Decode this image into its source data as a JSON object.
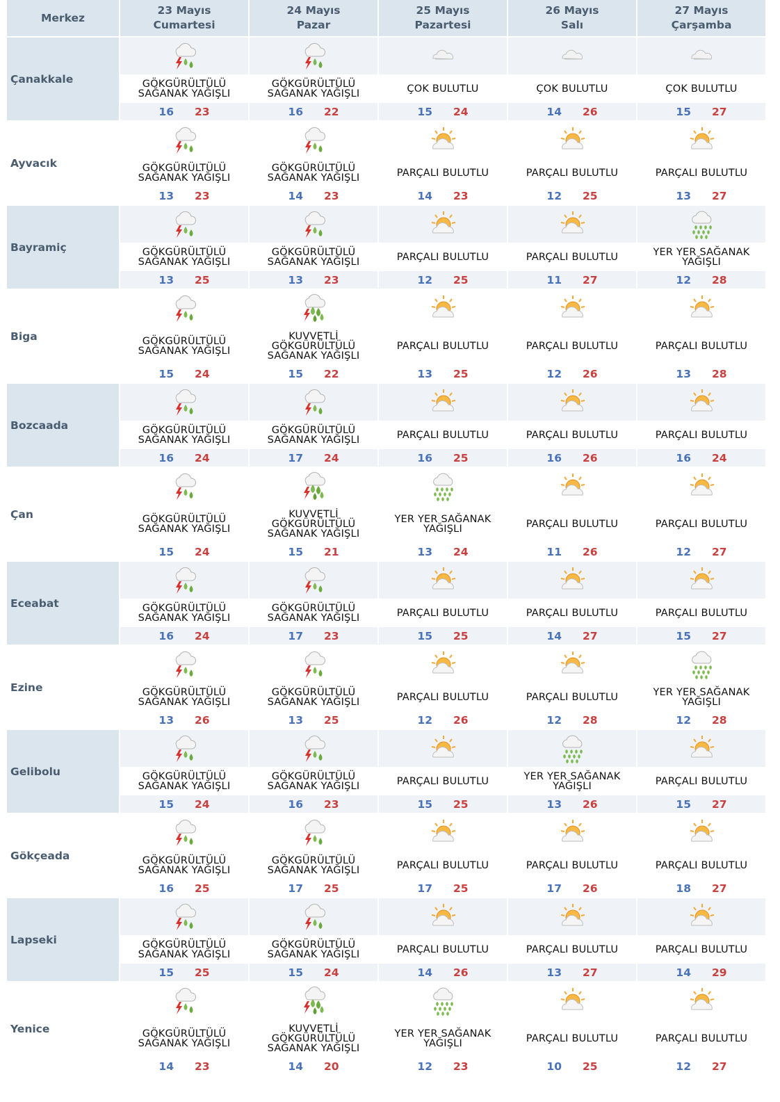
{
  "header": {
    "merkez_label": "Merkez",
    "days": [
      {
        "date": "23 Mayıs",
        "weekday": "Cumartesi"
      },
      {
        "date": "24 Mayıs",
        "weekday": "Pazar"
      },
      {
        "date": "25 Mayıs",
        "weekday": "Pazartesi"
      },
      {
        "date": "26 Mayıs",
        "weekday": "Salı"
      },
      {
        "date": "27 Mayıs",
        "weekday": "Çarşamba"
      }
    ]
  },
  "colors": {
    "header_bg": "#dbe5ee",
    "shaded_bg": "#eff3f7",
    "min_temp": "#4a72b8",
    "max_temp": "#c94040",
    "city_text": "#4a5d70"
  },
  "icons": {
    "storm": "thunderstorm-icon",
    "heavy_storm": "heavy-thunderstorm-icon",
    "cloudy": "cloudy-icon",
    "partly": "partly-cloudy-icon",
    "showers": "showers-icon"
  },
  "rows": [
    {
      "city": "Çanakkale",
      "days": [
        {
          "icon": "storm",
          "desc": "GÖKGÜRÜLTÜLÜ SAĞANAK YAĞIŞLI",
          "min": "16",
          "max": "23"
        },
        {
          "icon": "storm",
          "desc": "GÖKGÜRÜLTÜLÜ SAĞANAK YAĞIŞLI",
          "min": "16",
          "max": "22"
        },
        {
          "icon": "cloudy",
          "desc": "ÇOK BULUTLU",
          "min": "15",
          "max": "24"
        },
        {
          "icon": "cloudy",
          "desc": "ÇOK BULUTLU",
          "min": "14",
          "max": "26"
        },
        {
          "icon": "cloudy",
          "desc": "ÇOK BULUTLU",
          "min": "15",
          "max": "27"
        }
      ]
    },
    {
      "city": "Ayvacık",
      "days": [
        {
          "icon": "storm",
          "desc": "GÖKGÜRÜLTÜLÜ SAĞANAK YAĞIŞLI",
          "min": "13",
          "max": "23"
        },
        {
          "icon": "storm",
          "desc": "GÖKGÜRÜLTÜLÜ SAĞANAK YAĞIŞLI",
          "min": "14",
          "max": "23"
        },
        {
          "icon": "partly",
          "desc": "PARÇALI BULUTLU",
          "min": "14",
          "max": "23"
        },
        {
          "icon": "partly",
          "desc": "PARÇALI BULUTLU",
          "min": "12",
          "max": "25"
        },
        {
          "icon": "partly",
          "desc": "PARÇALI BULUTLU",
          "min": "13",
          "max": "27"
        }
      ]
    },
    {
      "city": "Bayramiç",
      "days": [
        {
          "icon": "storm",
          "desc": "GÖKGÜRÜLTÜLÜ SAĞANAK YAĞIŞLI",
          "min": "13",
          "max": "25"
        },
        {
          "icon": "storm",
          "desc": "GÖKGÜRÜLTÜLÜ SAĞANAK YAĞIŞLI",
          "min": "13",
          "max": "23"
        },
        {
          "icon": "partly",
          "desc": "PARÇALI BULUTLU",
          "min": "12",
          "max": "25"
        },
        {
          "icon": "partly",
          "desc": "PARÇALI BULUTLU",
          "min": "11",
          "max": "27"
        },
        {
          "icon": "showers",
          "desc": "YER YER SAĞANAK YAĞIŞLI",
          "min": "12",
          "max": "28"
        }
      ]
    },
    {
      "city": "Biga",
      "days": [
        {
          "icon": "storm",
          "desc": "GÖKGÜRÜLTÜLÜ SAĞANAK YAĞIŞLI",
          "min": "15",
          "max": "24"
        },
        {
          "icon": "heavy_storm",
          "desc": "KUVVETLİ GÖKGÜRÜLTÜLÜ SAĞANAK YAĞIŞLI",
          "min": "15",
          "max": "22"
        },
        {
          "icon": "partly",
          "desc": "PARÇALI BULUTLU",
          "min": "13",
          "max": "25"
        },
        {
          "icon": "partly",
          "desc": "PARÇALI BULUTLU",
          "min": "12",
          "max": "26"
        },
        {
          "icon": "partly",
          "desc": "PARÇALI BULUTLU",
          "min": "13",
          "max": "28"
        }
      ]
    },
    {
      "city": "Bozcaada",
      "days": [
        {
          "icon": "storm",
          "desc": "GÖKGÜRÜLTÜLÜ SAĞANAK YAĞIŞLI",
          "min": "16",
          "max": "24"
        },
        {
          "icon": "storm",
          "desc": "GÖKGÜRÜLTÜLÜ SAĞANAK YAĞIŞLI",
          "min": "17",
          "max": "24"
        },
        {
          "icon": "partly",
          "desc": "PARÇALI BULUTLU",
          "min": "16",
          "max": "25"
        },
        {
          "icon": "partly",
          "desc": "PARÇALI BULUTLU",
          "min": "16",
          "max": "26"
        },
        {
          "icon": "partly",
          "desc": "PARÇALI BULUTLU",
          "min": "16",
          "max": "24"
        }
      ]
    },
    {
      "city": "Çan",
      "days": [
        {
          "icon": "storm",
          "desc": "GÖKGÜRÜLTÜLÜ SAĞANAK YAĞIŞLI",
          "min": "15",
          "max": "24"
        },
        {
          "icon": "heavy_storm",
          "desc": "KUVVETLİ GÖKGÜRÜLTÜLÜ SAĞANAK YAĞIŞLI",
          "min": "15",
          "max": "21"
        },
        {
          "icon": "showers",
          "desc": "YER YER SAĞANAK YAĞIŞLI",
          "min": "13",
          "max": "24"
        },
        {
          "icon": "partly",
          "desc": "PARÇALI BULUTLU",
          "min": "11",
          "max": "26"
        },
        {
          "icon": "partly",
          "desc": "PARÇALI BULUTLU",
          "min": "12",
          "max": "27"
        }
      ]
    },
    {
      "city": "Eceabat",
      "days": [
        {
          "icon": "storm",
          "desc": "GÖKGÜRÜLTÜLÜ SAĞANAK YAĞIŞLI",
          "min": "16",
          "max": "24"
        },
        {
          "icon": "storm",
          "desc": "GÖKGÜRÜLTÜLÜ SAĞANAK YAĞIŞLI",
          "min": "17",
          "max": "23"
        },
        {
          "icon": "partly",
          "desc": "PARÇALI BULUTLU",
          "min": "15",
          "max": "25"
        },
        {
          "icon": "partly",
          "desc": "PARÇALI BULUTLU",
          "min": "14",
          "max": "27"
        },
        {
          "icon": "partly",
          "desc": "PARÇALI BULUTLU",
          "min": "15",
          "max": "27"
        }
      ]
    },
    {
      "city": "Ezine",
      "days": [
        {
          "icon": "storm",
          "desc": "GÖKGÜRÜLTÜLÜ SAĞANAK YAĞIŞLI",
          "min": "13",
          "max": "26"
        },
        {
          "icon": "storm",
          "desc": "GÖKGÜRÜLTÜLÜ SAĞANAK YAĞIŞLI",
          "min": "13",
          "max": "25"
        },
        {
          "icon": "partly",
          "desc": "PARÇALI BULUTLU",
          "min": "12",
          "max": "26"
        },
        {
          "icon": "partly",
          "desc": "PARÇALI BULUTLU",
          "min": "12",
          "max": "28"
        },
        {
          "icon": "showers",
          "desc": "YER YER SAĞANAK YAĞIŞLI",
          "min": "12",
          "max": "28"
        }
      ]
    },
    {
      "city": "Gelibolu",
      "days": [
        {
          "icon": "storm",
          "desc": "GÖKGÜRÜLTÜLÜ SAĞANAK YAĞIŞLI",
          "min": "15",
          "max": "24"
        },
        {
          "icon": "storm",
          "desc": "GÖKGÜRÜLTÜLÜ SAĞANAK YAĞIŞLI",
          "min": "16",
          "max": "23"
        },
        {
          "icon": "partly",
          "desc": "PARÇALI BULUTLU",
          "min": "15",
          "max": "25"
        },
        {
          "icon": "showers",
          "desc": "YER YER SAĞANAK YAĞIŞLI",
          "min": "13",
          "max": "26"
        },
        {
          "icon": "partly",
          "desc": "PARÇALI BULUTLU",
          "min": "15",
          "max": "27"
        }
      ]
    },
    {
      "city": "Gökçeada",
      "days": [
        {
          "icon": "storm",
          "desc": "GÖKGÜRÜLTÜLÜ SAĞANAK YAĞIŞLI",
          "min": "16",
          "max": "25"
        },
        {
          "icon": "storm",
          "desc": "GÖKGÜRÜLTÜLÜ SAĞANAK YAĞIŞLI",
          "min": "17",
          "max": "25"
        },
        {
          "icon": "partly",
          "desc": "PARÇALI BULUTLU",
          "min": "17",
          "max": "25"
        },
        {
          "icon": "partly",
          "desc": "PARÇALI BULUTLU",
          "min": "17",
          "max": "26"
        },
        {
          "icon": "partly",
          "desc": "PARÇALI BULUTLU",
          "min": "18",
          "max": "27"
        }
      ]
    },
    {
      "city": "Lapseki",
      "days": [
        {
          "icon": "storm",
          "desc": "GÖKGÜRÜLTÜLÜ SAĞANAK YAĞIŞLI",
          "min": "15",
          "max": "25"
        },
        {
          "icon": "storm",
          "desc": "GÖKGÜRÜLTÜLÜ SAĞANAK YAĞIŞLI",
          "min": "15",
          "max": "24"
        },
        {
          "icon": "partly",
          "desc": "PARÇALI BULUTLU",
          "min": "14",
          "max": "26"
        },
        {
          "icon": "partly",
          "desc": "PARÇALI BULUTLU",
          "min": "13",
          "max": "27"
        },
        {
          "icon": "partly",
          "desc": "PARÇALI BULUTLU",
          "min": "14",
          "max": "29"
        }
      ]
    },
    {
      "city": "Yenice",
      "days": [
        {
          "icon": "storm",
          "desc": "GÖKGÜRÜLTÜLÜ SAĞANAK YAĞIŞLI",
          "min": "14",
          "max": "23"
        },
        {
          "icon": "heavy_storm",
          "desc": "KUVVETLİ GÖKGÜRÜLTÜLÜ SAĞANAK YAĞIŞLI",
          "min": "14",
          "max": "20"
        },
        {
          "icon": "showers",
          "desc": "YER YER SAĞANAK YAĞIŞLI",
          "min": "12",
          "max": "23"
        },
        {
          "icon": "partly",
          "desc": "PARÇALI BULUTLU",
          "min": "10",
          "max": "25"
        },
        {
          "icon": "partly",
          "desc": "PARÇALI BULUTLU",
          "min": "12",
          "max": "27"
        }
      ]
    }
  ]
}
